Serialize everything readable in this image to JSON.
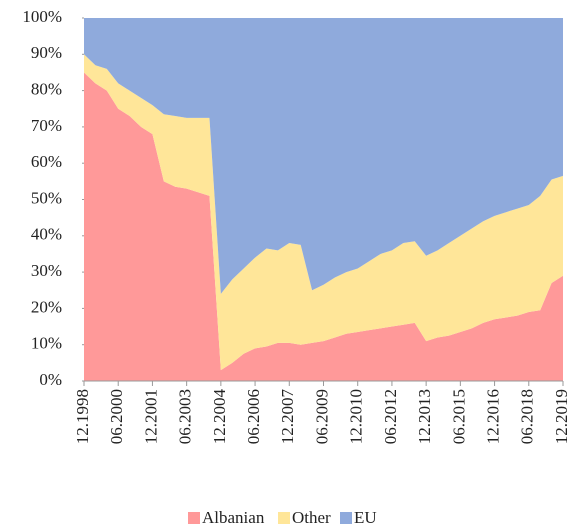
{
  "chart_data": {
    "type": "stacked_area",
    "categories": [
      "12.1998",
      null,
      null,
      "06.2000",
      null,
      null,
      "12.2001",
      null,
      null,
      "06.2003",
      null,
      null,
      "12.2004",
      null,
      null,
      "06.2006",
      null,
      null,
      "12.2007",
      null,
      null,
      "06.2009",
      null,
      null,
      "12.2010",
      null,
      null,
      "06.2012",
      null,
      null,
      "12.2013",
      null,
      null,
      "06.2015",
      null,
      null,
      "12.2016",
      null,
      null,
      "06.2018",
      null,
      null,
      "12.2019"
    ],
    "series": [
      {
        "name": "Albanian",
        "color": "#ff9999",
        "values": [
          85,
          82,
          80,
          75,
          73,
          70,
          68,
          55,
          53.5,
          53,
          52,
          51,
          3,
          5,
          7.5,
          9,
          9.5,
          10.5,
          10.5,
          10,
          10.5,
          11,
          12,
          13,
          13.5,
          14,
          14.5,
          15,
          15.5,
          16,
          11,
          12,
          12.5,
          13.5,
          14.5,
          16,
          17,
          17.5,
          18,
          19,
          19.5,
          27,
          29
        ]
      },
      {
        "name": "Other",
        "color": "#ffe699",
        "values": [
          5,
          5,
          6,
          7,
          7,
          8,
          8,
          18.5,
          19.5,
          19.5,
          20.5,
          21.5,
          21,
          23,
          23.5,
          25,
          27,
          25.5,
          27.5,
          27.5,
          14.5,
          15.5,
          16.5,
          17,
          17.5,
          19,
          20.5,
          21,
          22.5,
          22.5,
          23.5,
          24,
          25.5,
          26.5,
          27.5,
          28,
          28.5,
          29,
          29.5,
          29.5,
          31.5,
          28.5,
          27.5
        ]
      },
      {
        "name": "EU",
        "color": "#8faadc",
        "values": [
          10,
          13,
          14,
          18,
          20,
          22,
          24,
          26.5,
          27,
          27.5,
          27.5,
          27.5,
          76,
          72,
          69,
          66,
          63.5,
          64,
          62,
          62.5,
          75,
          73.5,
          71.5,
          70,
          69,
          67,
          65,
          64,
          62,
          61.5,
          65.5,
          64,
          62,
          60,
          58,
          56,
          54.5,
          53.5,
          52.5,
          51.5,
          49,
          44.5,
          43.5
        ]
      }
    ],
    "ylim": [
      0,
      100
    ],
    "yticks": [
      {
        "value": 0,
        "label": "0%"
      },
      {
        "value": 10,
        "label": "10%"
      },
      {
        "value": 20,
        "label": "20%"
      },
      {
        "value": 30,
        "label": "30%"
      },
      {
        "value": 40,
        "label": "40%"
      },
      {
        "value": 50,
        "label": "50%"
      },
      {
        "value": 60,
        "label": "60%"
      },
      {
        "value": 70,
        "label": "70%"
      },
      {
        "value": 80,
        "label": "80%"
      },
      {
        "value": 90,
        "label": "90%"
      },
      {
        "value": 100,
        "label": "100%"
      }
    ],
    "legend": "bottom"
  }
}
